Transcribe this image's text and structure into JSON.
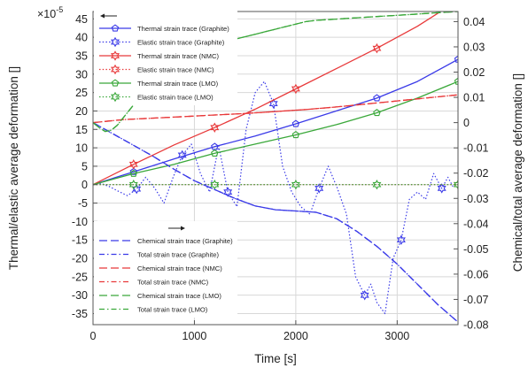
{
  "chart_data": {
    "type": "line",
    "xlabel": "Time [s]",
    "ylabel_left": "Thermal/elastic average deformation []",
    "ylabel_right": "Chemical/total average deformation []",
    "left_exponent": {
      "base": "×10",
      "power": "-5"
    },
    "xlim": [
      0,
      3600
    ],
    "ylim_left": [
      -38,
      47
    ],
    "ylim_right": [
      -0.08,
      0.044
    ],
    "xticks": [
      0,
      1000,
      2000,
      3000
    ],
    "yticks_left": [
      45,
      40,
      35,
      30,
      25,
      20,
      15,
      10,
      5,
      0,
      -5,
      -10,
      -15,
      -20,
      -25,
      -30,
      -35
    ],
    "yticks_right": [
      0.04,
      0.03,
      0.02,
      0.01,
      0,
      -0.01,
      -0.02,
      -0.03,
      -0.04,
      -0.05,
      -0.06,
      -0.07,
      -0.08
    ],
    "grid": true,
    "legend_groups": [
      {
        "placement": "top-left",
        "axis_arrow": "left",
        "entries": [
          0,
          1,
          2,
          3,
          4,
          5
        ]
      },
      {
        "placement": "bottom-left",
        "axis_arrow": "right",
        "entries": [
          6,
          7,
          8,
          9,
          10,
          11
        ]
      }
    ],
    "series": [
      {
        "name": "Thermal strain trace (Graphite)",
        "axis": "left",
        "color": "#3a3ae8",
        "style": "solid",
        "marker": "pentagon",
        "x": [
          0,
          400,
          800,
          1200,
          1600,
          2000,
          2400,
          2800,
          3200,
          3600
        ],
        "y": [
          0,
          3.5,
          7,
          10.3,
          13.2,
          16.5,
          20,
          23.5,
          28,
          34
        ]
      },
      {
        "name": "Elastic strain trace (Graphite)",
        "axis": "left",
        "color": "#3a3ae8",
        "style": "dotted",
        "marker": "hexagram",
        "x": [
          0,
          80,
          160,
          250,
          340,
          430,
          520,
          610,
          700,
          790,
          880,
          970,
          1060,
          1150,
          1240,
          1330,
          1420,
          1510,
          1600,
          1690,
          1780,
          1870,
          1960,
          2050,
          2140,
          2230,
          2320,
          2410,
          2500,
          2590,
          2680,
          2740,
          2800,
          2880,
          2960,
          3040,
          3120,
          3200,
          3280,
          3360,
          3440,
          3500,
          3560
        ],
        "y": [
          0,
          0.3,
          -0.5,
          -1.8,
          -3,
          -1.2,
          2,
          -1,
          -5,
          2,
          8,
          11,
          3,
          -2,
          10.5,
          -2,
          -6,
          15,
          25,
          28,
          22,
          5,
          -2,
          -6,
          -8,
          -1,
          5,
          -1,
          -8,
          -25,
          -30,
          -27,
          -32,
          -35,
          -20,
          -15,
          -4,
          -2,
          -4,
          3,
          -1,
          2,
          -1
        ]
      },
      {
        "name": "Thermal strain trace (NMC)",
        "axis": "left",
        "color": "#e8393a",
        "style": "solid",
        "marker": "hexagram",
        "x": [
          0,
          400,
          800,
          1200,
          1600,
          2000,
          2400,
          2800,
          3200,
          3600
        ],
        "y": [
          0,
          5.5,
          10.8,
          15.5,
          20.5,
          26,
          31.5,
          37,
          43,
          50
        ]
      },
      {
        "name": "Elastic strain trace (NMC)",
        "axis": "left",
        "color": "#e8393a",
        "style": "dotted",
        "marker": "hexagram",
        "x": [
          0,
          3600
        ],
        "y": [
          0,
          0
        ]
      },
      {
        "name": "Thermal strain trace (LMO)",
        "axis": "left",
        "color": "#3aa83a",
        "style": "solid",
        "marker": "pentagon",
        "x": [
          0,
          400,
          800,
          1200,
          1600,
          2000,
          2400,
          2800,
          3200,
          3600
        ],
        "y": [
          0,
          3,
          5.5,
          8.5,
          11,
          13.5,
          16.3,
          19.5,
          23.5,
          28
        ]
      },
      {
        "name": "Elastic strain trace (LMO)",
        "axis": "left",
        "color": "#3aa83a",
        "style": "dotted",
        "marker": "hexagram",
        "x": [
          0,
          400,
          800,
          1200,
          1600,
          2000,
          2400,
          2800,
          3200,
          3600
        ],
        "y": [
          0,
          0,
          0,
          0,
          0,
          0,
          0,
          0,
          0,
          0
        ]
      },
      {
        "name": "Chemical strain trace (Graphite)",
        "axis": "right",
        "color": "#3a3ae8",
        "style": "long-dash",
        "x": [
          0,
          200,
          400,
          600,
          800,
          1000,
          1200,
          1400,
          1600,
          1800,
          2000,
          2200,
          2400,
          2600,
          2800,
          3000,
          3200,
          3400,
          3600
        ],
        "y": [
          0,
          -0.0045,
          -0.009,
          -0.0135,
          -0.0185,
          -0.023,
          -0.0265,
          -0.03,
          -0.033,
          -0.0345,
          -0.035,
          -0.0355,
          -0.038,
          -0.043,
          -0.049,
          -0.056,
          -0.064,
          -0.072,
          -0.079
        ]
      },
      {
        "name": "Total strain trace (Graphite)",
        "axis": "right",
        "color": "#3a3ae8",
        "style": "dash-dot",
        "x": [
          0,
          200,
          400,
          600,
          800,
          1000,
          1200,
          1400,
          1600,
          1800,
          2000,
          2200,
          2400,
          2600,
          2800,
          3000,
          3200,
          3400,
          3600
        ],
        "y": [
          0,
          -0.0045,
          -0.009,
          -0.0135,
          -0.0185,
          -0.023,
          -0.0265,
          -0.03,
          -0.033,
          -0.0345,
          -0.035,
          -0.0355,
          -0.038,
          -0.043,
          -0.049,
          -0.056,
          -0.064,
          -0.072,
          -0.079
        ]
      },
      {
        "name": "Chemical strain trace (NMC)",
        "axis": "right",
        "color": "#e8393a",
        "style": "long-dash",
        "x": [
          0,
          300,
          600,
          900,
          1200,
          1500,
          1800,
          2100,
          2400,
          2700,
          3000,
          3300,
          3600
        ],
        "y": [
          0,
          0.0012,
          0.0018,
          0.0024,
          0.003,
          0.0036,
          0.0044,
          0.0052,
          0.0062,
          0.0074,
          0.0086,
          0.0098,
          0.011
        ]
      },
      {
        "name": "Total strain trace (NMC)",
        "axis": "right",
        "color": "#e8393a",
        "style": "dash-dot",
        "x": [
          0,
          300,
          600,
          900,
          1200,
          1500,
          1800,
          2100,
          2400,
          2700,
          3000,
          3300,
          3600
        ],
        "y": [
          0,
          0.0012,
          0.0018,
          0.0024,
          0.003,
          0.0036,
          0.0044,
          0.0052,
          0.0062,
          0.0074,
          0.0086,
          0.0098,
          0.011
        ]
      },
      {
        "name": "Chemical strain trace (LMO)",
        "axis": "right",
        "color": "#3aa83a",
        "style": "long-dash",
        "x": [
          0,
          60,
          120,
          180,
          240,
          300,
          360,
          420,
          480,
          540,
          600,
          700,
          800,
          900,
          1000,
          1100,
          1200,
          1300,
          1400,
          1500,
          1600,
          1700,
          1800,
          1900,
          2000,
          2100,
          2200,
          2400,
          2600,
          2800,
          3000,
          3200,
          3400,
          3600
        ],
        "y": [
          0,
          -0.002,
          -0.0035,
          -0.003,
          -0.001,
          0.002,
          0.005,
          0.008,
          0.011,
          0.014,
          0.017,
          0.021,
          0.024,
          0.026,
          0.028,
          0.0295,
          0.031,
          0.032,
          0.033,
          0.034,
          0.035,
          0.036,
          0.037,
          0.038,
          0.039,
          0.04,
          0.0405,
          0.041,
          0.0415,
          0.042,
          0.0425,
          0.043,
          0.0435,
          0.044
        ]
      },
      {
        "name": "Total strain trace (LMO)",
        "axis": "right",
        "color": "#3aa83a",
        "style": "dash-dot",
        "x": [
          0,
          60,
          120,
          180,
          240,
          300,
          360,
          420,
          480,
          540,
          600,
          700,
          800,
          900,
          1000,
          1100,
          1200,
          1300,
          1400,
          1500,
          1600,
          1700,
          1800,
          1900,
          2000,
          2100,
          2200,
          2400,
          2600,
          2800,
          3000,
          3200,
          3400,
          3600
        ],
        "y": [
          0,
          -0.002,
          -0.0035,
          -0.003,
          -0.001,
          0.002,
          0.005,
          0.008,
          0.011,
          0.014,
          0.017,
          0.021,
          0.024,
          0.026,
          0.028,
          0.0295,
          0.031,
          0.032,
          0.033,
          0.034,
          0.035,
          0.036,
          0.037,
          0.038,
          0.039,
          0.04,
          0.0405,
          0.041,
          0.0415,
          0.042,
          0.0425,
          0.043,
          0.0435,
          0.044
        ]
      }
    ]
  }
}
